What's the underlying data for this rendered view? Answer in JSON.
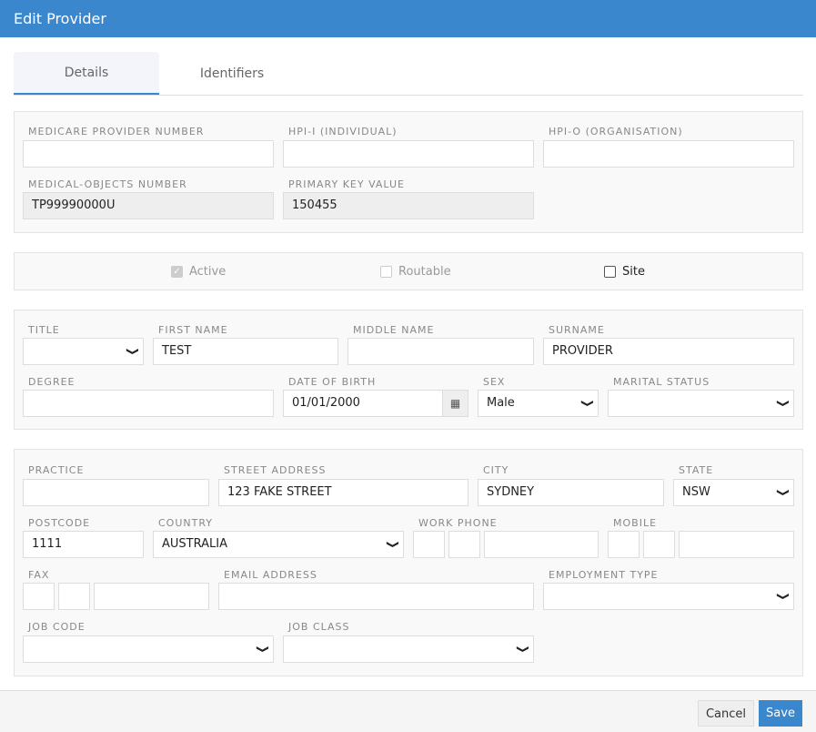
{
  "dialog": {
    "title": "Edit Provider"
  },
  "tabs": [
    {
      "label": "Details",
      "active": true
    },
    {
      "label": "Identifiers",
      "active": false
    }
  ],
  "ids": {
    "medicare_label": "MEDICARE PROVIDER NUMBER",
    "medicare_value": "",
    "hpii_label": "HPI-I (INDIVIDUAL)",
    "hpii_value": "",
    "hpio_label": "HPI-O (ORGANISATION)",
    "hpio_value": "",
    "mo_label": "MEDICAL-OBJECTS NUMBER",
    "mo_value": "TP99990000U",
    "pk_label": "PRIMARY KEY VALUE",
    "pk_value": "150455"
  },
  "flags": {
    "active_label": "Active",
    "active_checked": true,
    "active_disabled": true,
    "routable_label": "Routable",
    "routable_checked": false,
    "routable_disabled": true,
    "site_label": "Site",
    "site_checked": false
  },
  "person": {
    "title_label": "TITLE",
    "title_value": "",
    "first_label": "FIRST NAME",
    "first_value": "TEST",
    "middle_label": "MIDDLE NAME",
    "middle_value": "",
    "surname_label": "SURNAME",
    "surname_value": "PROVIDER",
    "degree_label": "DEGREE",
    "degree_value": "",
    "dob_label": "DATE OF BIRTH",
    "dob_value": "01/01/2000",
    "sex_label": "SEX",
    "sex_value": "Male",
    "marital_label": "MARITAL STATUS",
    "marital_value": ""
  },
  "address": {
    "practice_label": "PRACTICE",
    "practice_value": "",
    "street_label": "STREET ADDRESS",
    "street_value": "123 FAKE STREET",
    "city_label": "CITY",
    "city_value": "SYDNEY",
    "state_label": "STATE",
    "state_value": "NSW",
    "postcode_label": "POSTCODE",
    "postcode_value": "1111",
    "country_label": "COUNTRY",
    "country_value": "AUSTRALIA",
    "work_phone_label": "WORK PHONE",
    "mobile_label": "MOBILE",
    "fax_label": "FAX",
    "email_label": "EMAIL ADDRESS",
    "email_value": "",
    "employment_label": "EMPLOYMENT TYPE",
    "employment_value": "",
    "job_code_label": "JOB CODE",
    "job_code_value": "",
    "job_class_label": "JOB CLASS",
    "job_class_value": ""
  },
  "footer": {
    "cancel": "Cancel",
    "save": "Save"
  },
  "colors": {
    "primary": "#3a87cd"
  }
}
